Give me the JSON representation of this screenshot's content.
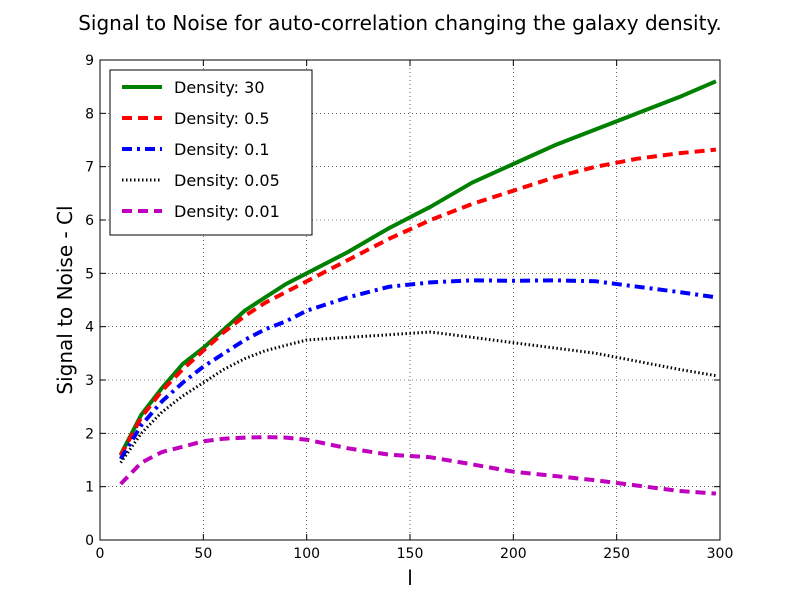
{
  "chart_data": {
    "type": "line",
    "title": "Signal to Noise for auto-correlation changing the galaxy density.",
    "xlabel": "l",
    "ylabel": "Signal to Noise - Cl",
    "xlim": [
      0,
      300
    ],
    "ylim": [
      0,
      9
    ],
    "xticks": [
      0,
      50,
      100,
      150,
      200,
      250,
      300
    ],
    "yticks": [
      0,
      1,
      2,
      3,
      4,
      5,
      6,
      7,
      8,
      9
    ],
    "grid": true,
    "legend_position": "top-left",
    "series": [
      {
        "name": "Density: 30",
        "color": "#008000",
        "style": "solid",
        "x": [
          10,
          20,
          30,
          40,
          50,
          60,
          70,
          80,
          90,
          100,
          120,
          140,
          160,
          180,
          200,
          220,
          240,
          260,
          280,
          298
        ],
        "y": [
          1.6,
          2.35,
          2.85,
          3.3,
          3.6,
          3.95,
          4.3,
          4.55,
          4.8,
          5.0,
          5.4,
          5.85,
          6.25,
          6.7,
          7.05,
          7.4,
          7.7,
          8.0,
          8.3,
          8.6
        ]
      },
      {
        "name": "Density: 0.5",
        "color": "#ff0000",
        "style": "dashed",
        "x": [
          10,
          20,
          30,
          40,
          50,
          60,
          70,
          80,
          90,
          100,
          120,
          140,
          160,
          180,
          200,
          220,
          240,
          260,
          280,
          298
        ],
        "y": [
          1.58,
          2.3,
          2.8,
          3.2,
          3.55,
          3.9,
          4.2,
          4.45,
          4.65,
          4.85,
          5.25,
          5.65,
          6.0,
          6.3,
          6.55,
          6.8,
          7.0,
          7.15,
          7.25,
          7.32
        ]
      },
      {
        "name": "Density: 0.1",
        "color": "#0000ff",
        "style": "dashdot",
        "x": [
          10,
          20,
          30,
          40,
          50,
          60,
          70,
          80,
          90,
          100,
          120,
          140,
          160,
          180,
          200,
          220,
          240,
          260,
          280,
          298
        ],
        "y": [
          1.52,
          2.15,
          2.6,
          2.95,
          3.25,
          3.5,
          3.75,
          3.95,
          4.1,
          4.3,
          4.55,
          4.75,
          4.83,
          4.87,
          4.86,
          4.87,
          4.85,
          4.75,
          4.65,
          4.55
        ]
      },
      {
        "name": "Density: 0.05",
        "color": "#000000",
        "style": "dotted",
        "x": [
          10,
          20,
          30,
          40,
          50,
          60,
          70,
          80,
          90,
          100,
          120,
          140,
          160,
          180,
          200,
          220,
          240,
          260,
          280,
          298
        ],
        "y": [
          1.45,
          2.0,
          2.4,
          2.7,
          2.95,
          3.2,
          3.4,
          3.55,
          3.65,
          3.75,
          3.8,
          3.85,
          3.9,
          3.8,
          3.7,
          3.6,
          3.5,
          3.35,
          3.2,
          3.08
        ]
      },
      {
        "name": "Density: 0.01",
        "color": "#bf00bf",
        "style": "dashed",
        "x": [
          10,
          20,
          30,
          40,
          50,
          60,
          70,
          80,
          90,
          100,
          120,
          140,
          160,
          180,
          200,
          220,
          240,
          260,
          280,
          298
        ],
        "y": [
          1.05,
          1.45,
          1.65,
          1.75,
          1.85,
          1.9,
          1.92,
          1.93,
          1.92,
          1.88,
          1.72,
          1.6,
          1.55,
          1.42,
          1.28,
          1.2,
          1.12,
          1.02,
          0.92,
          0.87
        ]
      }
    ]
  }
}
